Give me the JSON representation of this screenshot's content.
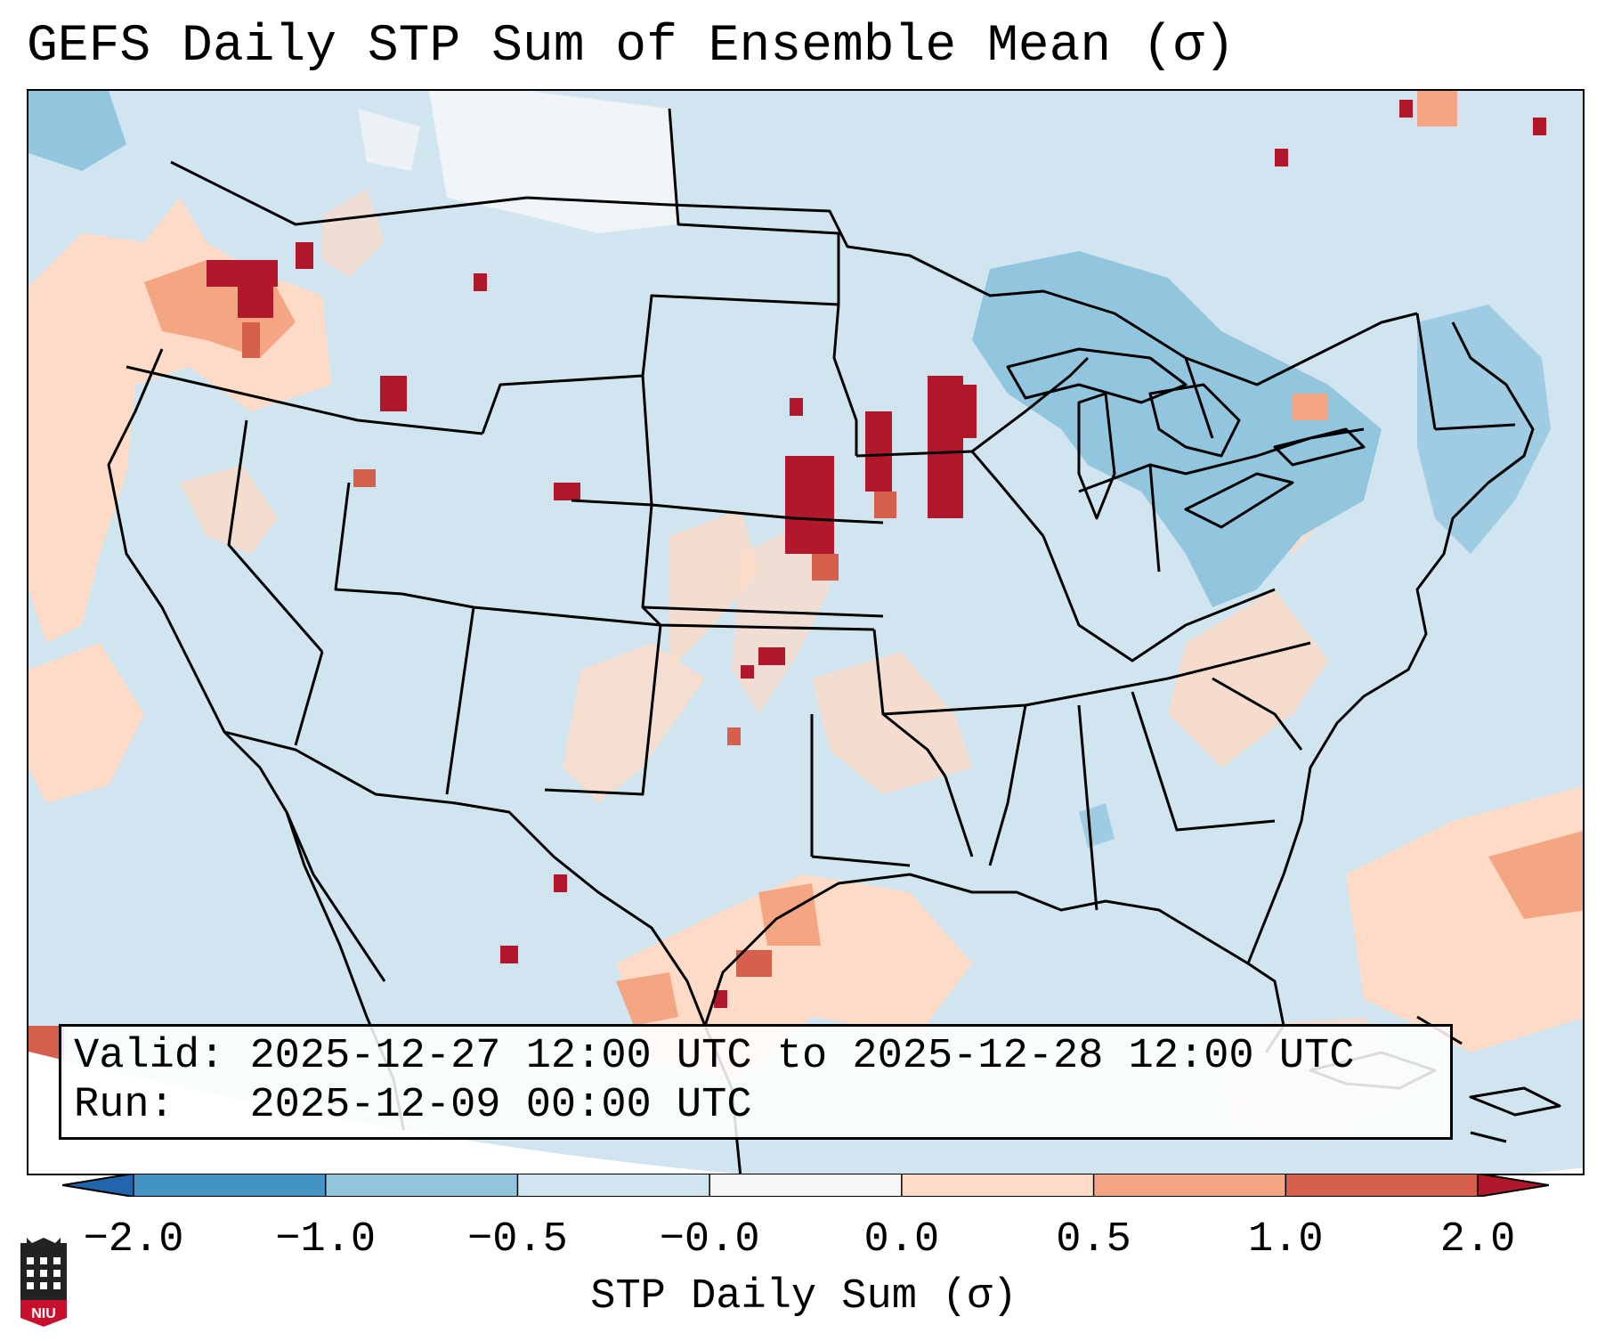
{
  "title": "GEFS Daily STP Sum of Ensemble Mean (σ)",
  "infobox": {
    "valid_label": "Valid:",
    "valid_value": "2025-12-27 12:00 UTC to 2025-12-28 12:00 UTC",
    "run_label": "Run:",
    "run_value": "2025-12-09 00:00 UTC"
  },
  "colorbar": {
    "label": "STP Daily Sum (σ)",
    "ticks": [
      "−2.0",
      "−1.0",
      "−0.5",
      "−0.0",
      "0.0",
      "0.5",
      "1.0",
      "2.0"
    ],
    "bin_colors": [
      "#2166ac",
      "#4393c3",
      "#92c5de",
      "#d1e5f0",
      "#f7f7f7",
      "#fddbc7",
      "#f4a582",
      "#d6604d",
      "#b2182b"
    ]
  },
  "map_palette": {
    "background_bin": "#d1e5f0",
    "neutral_bin": "#f7f7f7",
    "light_positive": "#fddbc7",
    "medium_positive": "#f4a582",
    "strong_positive": "#d6604d",
    "extreme_positive": "#b2182b",
    "light_negative": "#92c5de",
    "borders": "#000000"
  },
  "logo": {
    "text": "NIU",
    "color": "#c8102e"
  }
}
